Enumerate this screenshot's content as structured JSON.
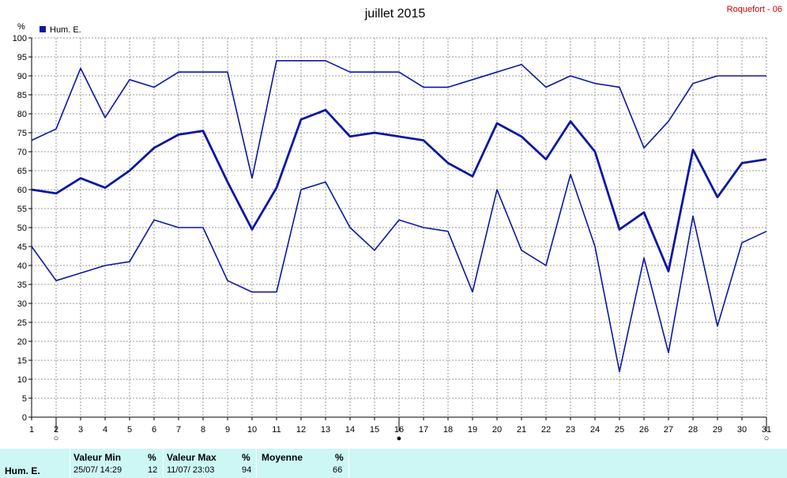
{
  "chart_data": {
    "type": "line",
    "title": "juillet 2015",
    "station": "Roquefort - 06",
    "y_unit": "%",
    "ylim": [
      0,
      100
    ],
    "y_ticks": [
      0,
      5,
      10,
      15,
      20,
      25,
      30,
      35,
      40,
      45,
      50,
      55,
      60,
      65,
      70,
      75,
      80,
      85,
      90,
      95,
      100
    ],
    "x": [
      1,
      2,
      3,
      4,
      5,
      6,
      7,
      8,
      9,
      10,
      11,
      12,
      13,
      14,
      15,
      16,
      17,
      18,
      19,
      20,
      21,
      22,
      23,
      24,
      25,
      26,
      27,
      28,
      29,
      30,
      31
    ],
    "grid": true,
    "legend": {
      "label": "Hum. E.",
      "placement": "top-left"
    },
    "series": [
      {
        "name": "Hum. E.",
        "role": "max",
        "values": [
          73,
          76,
          92,
          79,
          89,
          87,
          91,
          91,
          91,
          63,
          94,
          94,
          94,
          91,
          91,
          91,
          87,
          87,
          89,
          91,
          93,
          87,
          90,
          88,
          87,
          71,
          78,
          88,
          90,
          90,
          90
        ]
      },
      {
        "name": "Hum. E.",
        "role": "mean",
        "values": [
          60,
          59,
          63,
          60.5,
          65,
          71,
          74.5,
          75.5,
          62,
          49.5,
          60.5,
          78.5,
          81,
          74,
          75,
          74,
          73,
          67,
          63.5,
          77.5,
          74,
          68,
          78,
          70,
          49.5,
          54,
          38.5,
          70.5,
          58,
          67,
          68
        ]
      },
      {
        "name": "Hum. E.",
        "role": "min",
        "values": [
          45,
          36,
          38,
          40,
          41,
          52,
          50,
          50,
          36,
          33,
          33,
          60,
          62,
          50,
          44,
          52,
          50,
          49,
          33,
          60,
          44,
          40,
          64,
          45,
          12,
          42,
          17,
          53,
          24,
          46,
          49
        ]
      }
    ],
    "moon_markers": [
      {
        "day": 2,
        "symbol": "○"
      },
      {
        "day": 16,
        "symbol": "●"
      },
      {
        "day": 31,
        "symbol": "○"
      }
    ],
    "line_color": "#0b16a6"
  },
  "stats": {
    "row_label": "Hum.  E.",
    "min_header": "Valeur Min",
    "min_unit": "%",
    "min_time": "25/07/  14:29",
    "min_value": "12",
    "max_header": "Valeur Max",
    "max_unit": "%",
    "max_time": "11/07/  23:03",
    "max_value": "94",
    "avg_header": "Moyenne",
    "avg_unit": "%",
    "avg_value": "66"
  }
}
